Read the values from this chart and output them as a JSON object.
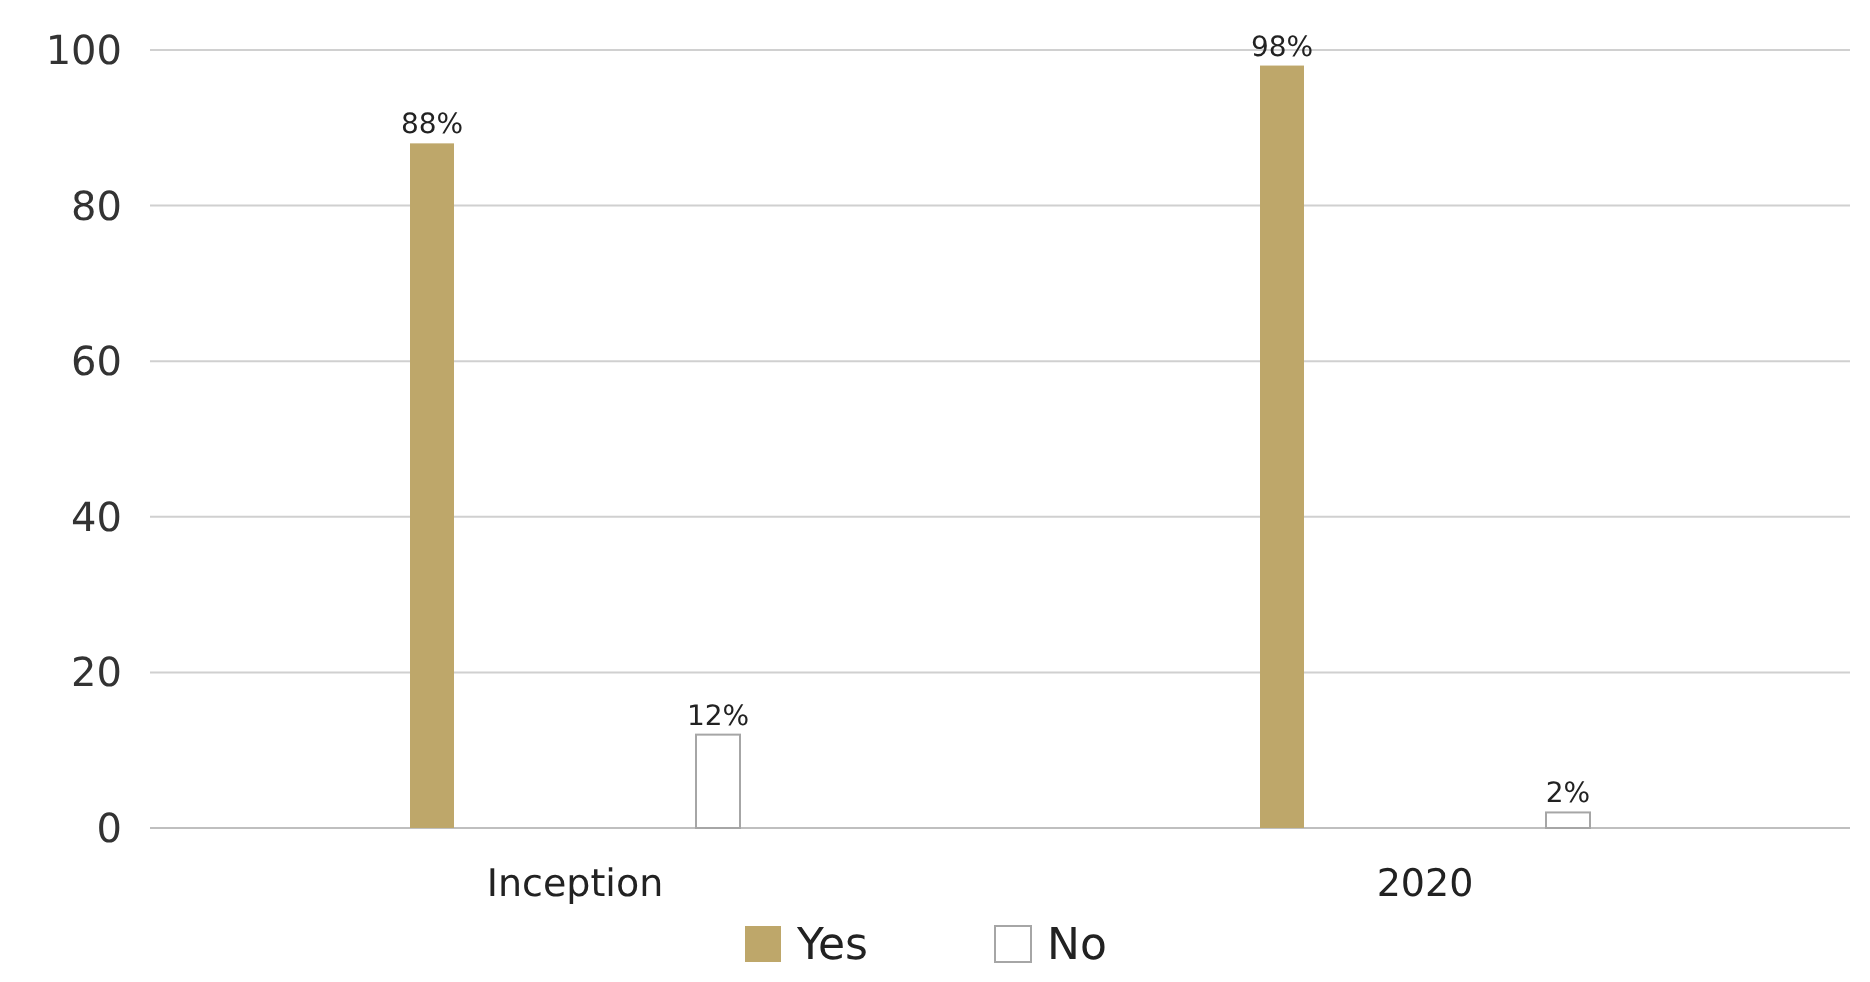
{
  "chart_data": {
    "type": "bar",
    "categories": [
      "Inception",
      "2020"
    ],
    "series": [
      {
        "name": "Yes",
        "color": "#bea76a",
        "values": [
          88,
          98
        ],
        "value_labels": [
          "88%",
          "98%"
        ]
      },
      {
        "name": "No",
        "color": "#ffffff",
        "values": [
          12,
          2
        ],
        "value_labels": [
          "12%",
          "2%"
        ]
      }
    ],
    "ylim": [
      0,
      100
    ],
    "yticks": [
      0,
      20,
      40,
      60,
      80,
      100
    ],
    "grid": "y",
    "legend": "bottom"
  }
}
